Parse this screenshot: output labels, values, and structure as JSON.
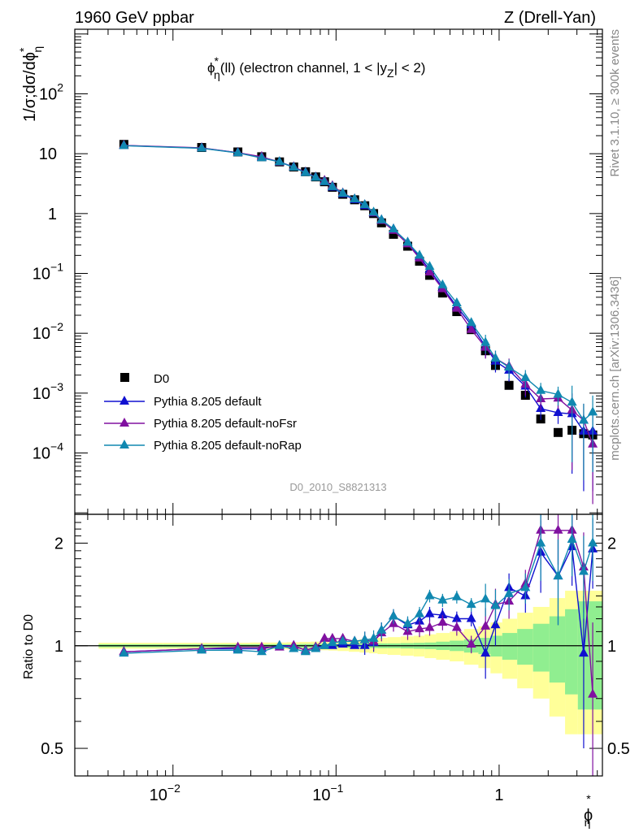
{
  "header": {
    "left_title": "1960 GeV ppbar",
    "right_title": "Z (Drell-Yan)"
  },
  "side_labels": {
    "top": "Rivet 3.1.10, ≥ 300k events",
    "bottom": "mcplots.cern.ch [arXiv:1306.3436]"
  },
  "analysis_id": "D0_2010_S8821313",
  "colors": {
    "data": "#000000",
    "default": "#1010d0",
    "noFsr": "#8010a0",
    "noRap": "#1088b0",
    "band_inner": "#90ee90",
    "band_outer": "#ffff99"
  },
  "chart_data": [
    {
      "type": "line",
      "subplot": "main",
      "title_main": "ϕ",
      "title_sup": "*",
      "title_sub": "η",
      "title_rest": "(ll) (electron channel, 1 < |y",
      "title_sub2": "Z",
      "title_end": "| < 2)",
      "ylabel": "1/σ;dσ/dϕ",
      "ylabel_sup": "*",
      "ylabel_sub": "η",
      "xscale": "log",
      "yscale": "log",
      "xlim": [
        0.0025,
        4.3
      ],
      "ylim": [
        9.45e-06,
        1200
      ],
      "y_tick_labels": [
        "10^-4",
        "10^-3",
        "10^-2",
        "10^-1",
        "1",
        "10",
        "10^2"
      ],
      "legend_position": "lower-left",
      "x": [
        0.005,
        0.015,
        0.025,
        0.035,
        0.045,
        0.055,
        0.065,
        0.075,
        0.085,
        0.095,
        0.11,
        0.13,
        0.15,
        0.17,
        0.19,
        0.225,
        0.275,
        0.325,
        0.375,
        0.45,
        0.55,
        0.675,
        0.825,
        0.95,
        1.15,
        1.45,
        1.8,
        2.3,
        2.8,
        3.3,
        3.75
      ],
      "series": [
        {
          "name": "D0",
          "style": "data",
          "values": [
            14.3,
            12.7,
            10.7,
            8.9,
            7.3,
            6.0,
            5.0,
            4.1,
            3.4,
            2.75,
            2.1,
            1.7,
            1.35,
            1.0,
            0.7,
            0.45,
            0.285,
            0.16,
            0.093,
            0.047,
            0.023,
            0.0115,
            0.0051,
            0.0029,
            0.00135,
            0.00092,
            0.00037,
            0.00022,
            0.00024,
            0.00021,
            0.0002
          ]
        },
        {
          "name": "Pythia 8.205 default",
          "style": "default",
          "values": [
            13.7,
            12.4,
            10.4,
            8.7,
            7.3,
            6.0,
            4.9,
            4.05,
            3.4,
            2.75,
            2.12,
            1.7,
            1.35,
            1.02,
            0.78,
            0.55,
            0.33,
            0.19,
            0.115,
            0.058,
            0.028,
            0.0138,
            0.006,
            0.0034,
            0.0024,
            0.0013,
            0.00055,
            0.00047,
            0.00045,
            0.00023,
            0.00023
          ]
        },
        {
          "name": "Pythia 8.205 default-noFsr",
          "style": "noFsr",
          "values": [
            13.8,
            12.5,
            10.4,
            8.9,
            7.2,
            6.0,
            4.85,
            4.05,
            3.55,
            2.9,
            2.2,
            1.75,
            1.4,
            1.03,
            0.76,
            0.52,
            0.31,
            0.18,
            0.105,
            0.055,
            0.026,
            0.0115,
            0.0058,
            0.0038,
            0.0028,
            0.0014,
            0.0008,
            0.00082,
            0.00052,
            0.00035,
            0.00014
          ]
        },
        {
          "name": "Pythia 8.205 default-noRap",
          "style": "noRap",
          "values": [
            13.6,
            12.3,
            10.3,
            8.5,
            7.3,
            5.9,
            4.8,
            4.0,
            3.4,
            2.8,
            2.17,
            1.75,
            1.4,
            1.05,
            0.78,
            0.55,
            0.33,
            0.2,
            0.13,
            0.064,
            0.032,
            0.015,
            0.007,
            0.0038,
            0.0027,
            0.0018,
            0.0011,
            0.00095,
            0.0007,
            0.00035,
            0.00048
          ]
        }
      ]
    },
    {
      "type": "line",
      "subplot": "ratio",
      "ylabel": "Ratio to D0",
      "xlabel": "ϕ",
      "xlabel_sup": "*",
      "xlabel_sub": "η",
      "xscale": "log",
      "yscale": "log",
      "xlim": [
        0.0025,
        4.3
      ],
      "ylim": [
        0.415,
        2.43
      ],
      "y_ticks": [
        0.5,
        1,
        2
      ],
      "y_tick_labels": [
        "0.5",
        "1",
        "2"
      ],
      "x_tick_labels": [
        "10^-2",
        "10^-1",
        "1"
      ],
      "x": [
        0.005,
        0.015,
        0.025,
        0.035,
        0.045,
        0.055,
        0.065,
        0.075,
        0.085,
        0.095,
        0.11,
        0.13,
        0.15,
        0.17,
        0.19,
        0.225,
        0.275,
        0.325,
        0.375,
        0.45,
        0.55,
        0.675,
        0.825,
        0.95,
        1.15,
        1.45,
        1.8,
        2.3,
        2.8,
        3.3,
        3.75
      ],
      "band_inner": [
        0.01,
        0.01,
        0.01,
        0.01,
        0.01,
        0.01,
        0.012,
        0.012,
        0.012,
        0.012,
        0.012,
        0.014,
        0.015,
        0.015,
        0.016,
        0.016,
        0.018,
        0.02,
        0.022,
        0.028,
        0.035,
        0.045,
        0.055,
        0.07,
        0.09,
        0.12,
        0.16,
        0.22,
        0.28,
        0.35,
        0.35
      ],
      "band_outer": [
        0.02,
        0.02,
        0.02,
        0.022,
        0.022,
        0.024,
        0.026,
        0.028,
        0.03,
        0.032,
        0.035,
        0.04,
        0.045,
        0.05,
        0.055,
        0.06,
        0.065,
        0.07,
        0.08,
        0.09,
        0.1,
        0.12,
        0.14,
        0.17,
        0.2,
        0.25,
        0.3,
        0.38,
        0.45,
        0.45,
        0.45
      ],
      "series": [
        {
          "name": "Pythia 8.205 default",
          "style": "default",
          "values": [
            0.96,
            0.98,
            0.98,
            0.98,
            1.0,
            1.0,
            0.97,
            0.99,
            1.0,
            1.0,
            1.01,
            1.0,
            1.0,
            1.02,
            1.11,
            1.22,
            1.15,
            1.18,
            1.24,
            1.23,
            1.2,
            1.2,
            0.95,
            1.15,
            1.48,
            1.4,
            1.88,
            1.6,
            1.95,
            0.95,
            1.92
          ]
        },
        {
          "name": "Pythia 8.205 default-noFsr",
          "style": "noFsr",
          "values": [
            0.96,
            0.98,
            0.99,
            0.99,
            0.99,
            1.0,
            0.97,
            0.99,
            1.05,
            1.05,
            1.05,
            1.03,
            1.04,
            1.03,
            1.09,
            1.16,
            1.1,
            1.12,
            1.13,
            1.17,
            1.13,
            1.01,
            1.14,
            1.32,
            1.35,
            1.52,
            2.18,
            2.18,
            2.18,
            1.7,
            0.72
          ]
        },
        {
          "name": "Pythia 8.205 default-noRap",
          "style": "noRap",
          "values": [
            0.95,
            0.97,
            0.97,
            0.96,
            1.0,
            0.98,
            0.96,
            0.98,
            1.0,
            1.02,
            1.03,
            1.03,
            1.04,
            1.05,
            1.11,
            1.22,
            1.16,
            1.24,
            1.4,
            1.36,
            1.39,
            1.32,
            1.37,
            1.31,
            1.42,
            1.48,
            2.0,
            1.6,
            2.05,
            1.65,
            2.0
          ]
        }
      ]
    }
  ]
}
